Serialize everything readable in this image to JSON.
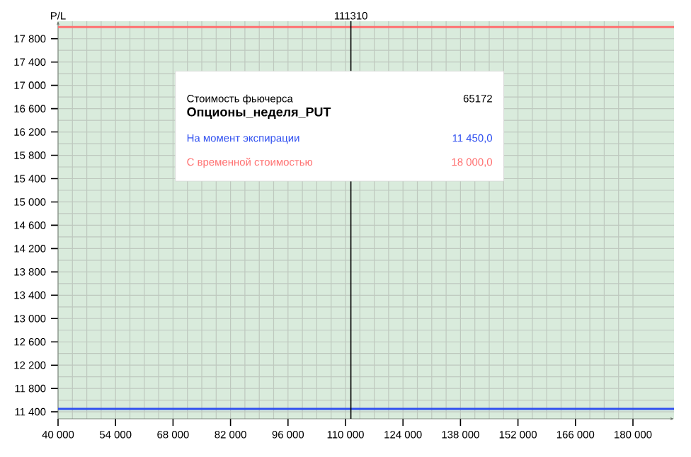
{
  "chart_data": {
    "type": "line",
    "ylabel": "P/L",
    "x": [
      40000,
      190000
    ],
    "series": [
      {
        "name": "На момент экспирации",
        "color": "#3050f0",
        "values": [
          11450,
          11450
        ]
      },
      {
        "name": "С временной стоимостью",
        "color": "#ff7070",
        "values": [
          18000,
          18000
        ]
      }
    ],
    "xlim": [
      40000,
      190000
    ],
    "ylim": [
      11280,
      18100
    ],
    "xticks": [
      {
        "value": 40000,
        "label": "40 000"
      },
      {
        "value": 54000,
        "label": "54 000"
      },
      {
        "value": 68000,
        "label": "68 000"
      },
      {
        "value": 82000,
        "label": "82 000"
      },
      {
        "value": 96000,
        "label": "96 000"
      },
      {
        "value": 110000,
        "label": "110 000"
      },
      {
        "value": 124000,
        "label": "124 000"
      },
      {
        "value": 138000,
        "label": "138 000"
      },
      {
        "value": 152000,
        "label": "152 000"
      },
      {
        "value": 166000,
        "label": "166 000"
      },
      {
        "value": 180000,
        "label": "180 000"
      }
    ],
    "yticks": [
      {
        "value": 11400,
        "label": "11 400"
      },
      {
        "value": 11800,
        "label": "11 800"
      },
      {
        "value": 12200,
        "label": "12 200"
      },
      {
        "value": 12600,
        "label": "12 600"
      },
      {
        "value": 13000,
        "label": "13 000"
      },
      {
        "value": 13400,
        "label": "13 400"
      },
      {
        "value": 13800,
        "label": "13 800"
      },
      {
        "value": 14200,
        "label": "14 200"
      },
      {
        "value": 14600,
        "label": "14 600"
      },
      {
        "value": 15000,
        "label": "15 000"
      },
      {
        "value": 15400,
        "label": "15 400"
      },
      {
        "value": 15800,
        "label": "15 800"
      },
      {
        "value": 16200,
        "label": "16 200"
      },
      {
        "value": 16600,
        "label": "16 600"
      },
      {
        "value": 17000,
        "label": "17 000"
      },
      {
        "value": 17400,
        "label": "17 400"
      },
      {
        "value": 17800,
        "label": "17 800"
      }
    ],
    "ref_lines": [
      {
        "axis": "x",
        "value": 111310,
        "label": "111310",
        "color": "#000000"
      }
    ],
    "annotations": [
      "Стоимость фьючерса",
      "65172",
      "Опционы_неделя_PUT",
      "11 450,0",
      "18 000,0"
    ],
    "grid": true,
    "legend": "top",
    "marker": "none",
    "line_style": "solid"
  }
}
